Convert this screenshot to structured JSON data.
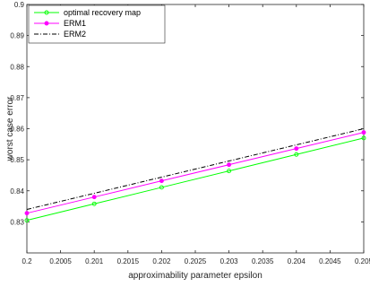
{
  "chart_data": {
    "type": "line",
    "title": "",
    "xlabel": "approximability parameter epsilon",
    "ylabel": "worst case error",
    "xlim": [
      0.2,
      0.205
    ],
    "ylim": [
      0.82,
      0.9
    ],
    "x_ticks": [
      0.2,
      0.2005,
      0.201,
      0.2015,
      0.202,
      0.2025,
      0.203,
      0.2035,
      0.204,
      0.2045,
      0.205
    ],
    "x_tick_labels": [
      "0.2",
      "0.2005",
      "0.201",
      "0.2015",
      "0.202",
      "0.2025",
      "0.203",
      "0.2035",
      "0.204",
      "0.2045",
      "0.205"
    ],
    "y_ticks": [
      0.83,
      0.84,
      0.85,
      0.86,
      0.87,
      0.88,
      0.89,
      0.9
    ],
    "y_tick_labels": [
      "0.83",
      "0.84",
      "0.85",
      "0.86",
      "0.87",
      "0.88",
      "0.89",
      "0.9"
    ],
    "grid": false,
    "legend_position": "top-left",
    "x": [
      0.2,
      0.201,
      0.202,
      0.203,
      0.204,
      0.205
    ],
    "series": [
      {
        "name": "optimal recovery map",
        "values": [
          0.8305,
          0.8358,
          0.8411,
          0.8464,
          0.8517,
          0.857
        ],
        "color": "#00ff00",
        "line_style": "solid",
        "marker": "circle"
      },
      {
        "name": "ERM1",
        "values": [
          0.8328,
          0.838,
          0.8432,
          0.8484,
          0.8536,
          0.8588
        ],
        "color": "#ff00ff",
        "line_style": "solid",
        "marker": "filled-circle"
      },
      {
        "name": "ERM2",
        "values": [
          0.834,
          0.8392,
          0.8444,
          0.8496,
          0.8548,
          0.86
        ],
        "color": "#000000",
        "line_style": "dash-dot",
        "marker": "none"
      }
    ]
  }
}
